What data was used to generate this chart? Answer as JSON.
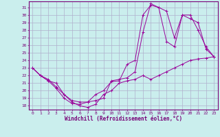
{
  "xlabel": "Windchill (Refroidissement éolien,°C)",
  "background_color": "#caeeed",
  "grid_color": "#b0b0cc",
  "line_color": "#990099",
  "ylim": [
    17.5,
    31.8
  ],
  "xlim": [
    -0.5,
    23.5
  ],
  "yticks": [
    18,
    19,
    20,
    21,
    22,
    23,
    24,
    25,
    26,
    27,
    28,
    29,
    30,
    31
  ],
  "xticks": [
    0,
    1,
    2,
    3,
    4,
    5,
    6,
    7,
    8,
    9,
    10,
    11,
    12,
    13,
    14,
    15,
    16,
    17,
    18,
    19,
    20,
    21,
    22,
    23
  ],
  "line1_x": [
    0,
    1,
    2,
    3,
    4,
    5,
    6,
    7,
    8,
    9,
    10,
    11,
    12,
    13,
    14,
    15,
    16,
    17,
    18,
    19,
    20,
    21,
    22,
    23
  ],
  "line1_y": [
    23,
    22,
    21.5,
    20.5,
    19.5,
    18.5,
    18.0,
    17.8,
    18.2,
    19.5,
    20.0,
    21.0,
    21.3,
    21.5,
    22.0,
    21.5,
    22.0,
    22.5,
    23.0,
    23.5,
    24.0,
    24.2,
    24.3,
    24.5
  ],
  "line2_x": [
    0,
    1,
    2,
    3,
    4,
    5,
    6,
    7,
    8,
    9,
    10,
    11,
    12,
    13,
    14,
    15,
    16,
    17,
    18,
    19,
    20,
    21,
    22,
    23
  ],
  "line2_y": [
    23,
    22,
    21.3,
    20.3,
    19.0,
    18.3,
    18.2,
    18.5,
    19.5,
    20.0,
    21.2,
    21.3,
    23.5,
    24.0,
    30.0,
    31.3,
    31.0,
    30.5,
    27.0,
    30.0,
    29.5,
    29.0,
    25.5,
    24.5
  ],
  "line3_x": [
    0,
    1,
    2,
    3,
    4,
    5,
    6,
    7,
    8,
    9,
    10,
    11,
    12,
    13,
    14,
    15,
    16,
    17,
    18,
    19,
    20,
    21,
    22,
    23
  ],
  "line3_y": [
    23,
    22,
    21.3,
    21.0,
    19.5,
    18.7,
    18.5,
    18.5,
    18.7,
    19.0,
    21.3,
    21.5,
    21.7,
    22.5,
    27.7,
    31.5,
    31.0,
    26.5,
    25.8,
    30.0,
    30.0,
    28.0,
    25.8,
    24.5
  ]
}
